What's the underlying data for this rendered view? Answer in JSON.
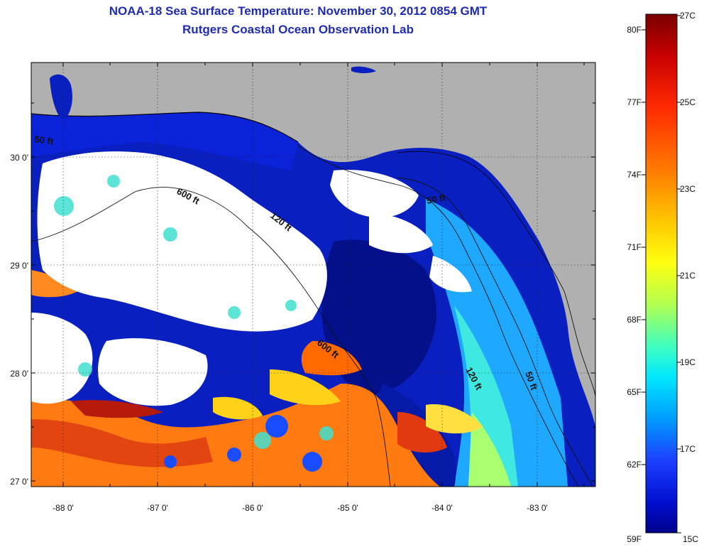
{
  "header": {
    "title": "NOAA-18 Sea Surface Temperature:  November 30, 2012 0854 GMT",
    "subtitle": "Rutgers Coastal Ocean Observation Lab"
  },
  "map": {
    "lat_ticks": [
      "27 0'",
      "28 0'",
      "29 0'",
      "30 0'"
    ],
    "lon_ticks": [
      "-88 0'",
      "-87 0'",
      "-86 0'",
      "-85 0'",
      "-84 0'",
      "-83 0'"
    ],
    "contour_labels": [
      "50 ft",
      "600 ft",
      "120 ft",
      "50 ft",
      "600 ft",
      "120 ft",
      "50 ft"
    ],
    "colors": {
      "land": "#b0b0b0",
      "cloud": "#ffffff",
      "frame": "#000000"
    }
  },
  "colorbar": {
    "celsius": [
      "27C",
      "25C",
      "23C",
      "21C",
      "19C",
      "17C",
      "15C"
    ],
    "fahrenheit": [
      "80F",
      "77F",
      "74F",
      "71F",
      "68F",
      "65F",
      "62F",
      "59F"
    ],
    "stops": [
      "#7a0000",
      "#c80000",
      "#ff2a00",
      "#ff7a00",
      "#ffc800",
      "#ffff10",
      "#b0ff50",
      "#40ffc0",
      "#00e8ff",
      "#009cff",
      "#1c40ff",
      "#0010d0",
      "#00008c"
    ]
  }
}
